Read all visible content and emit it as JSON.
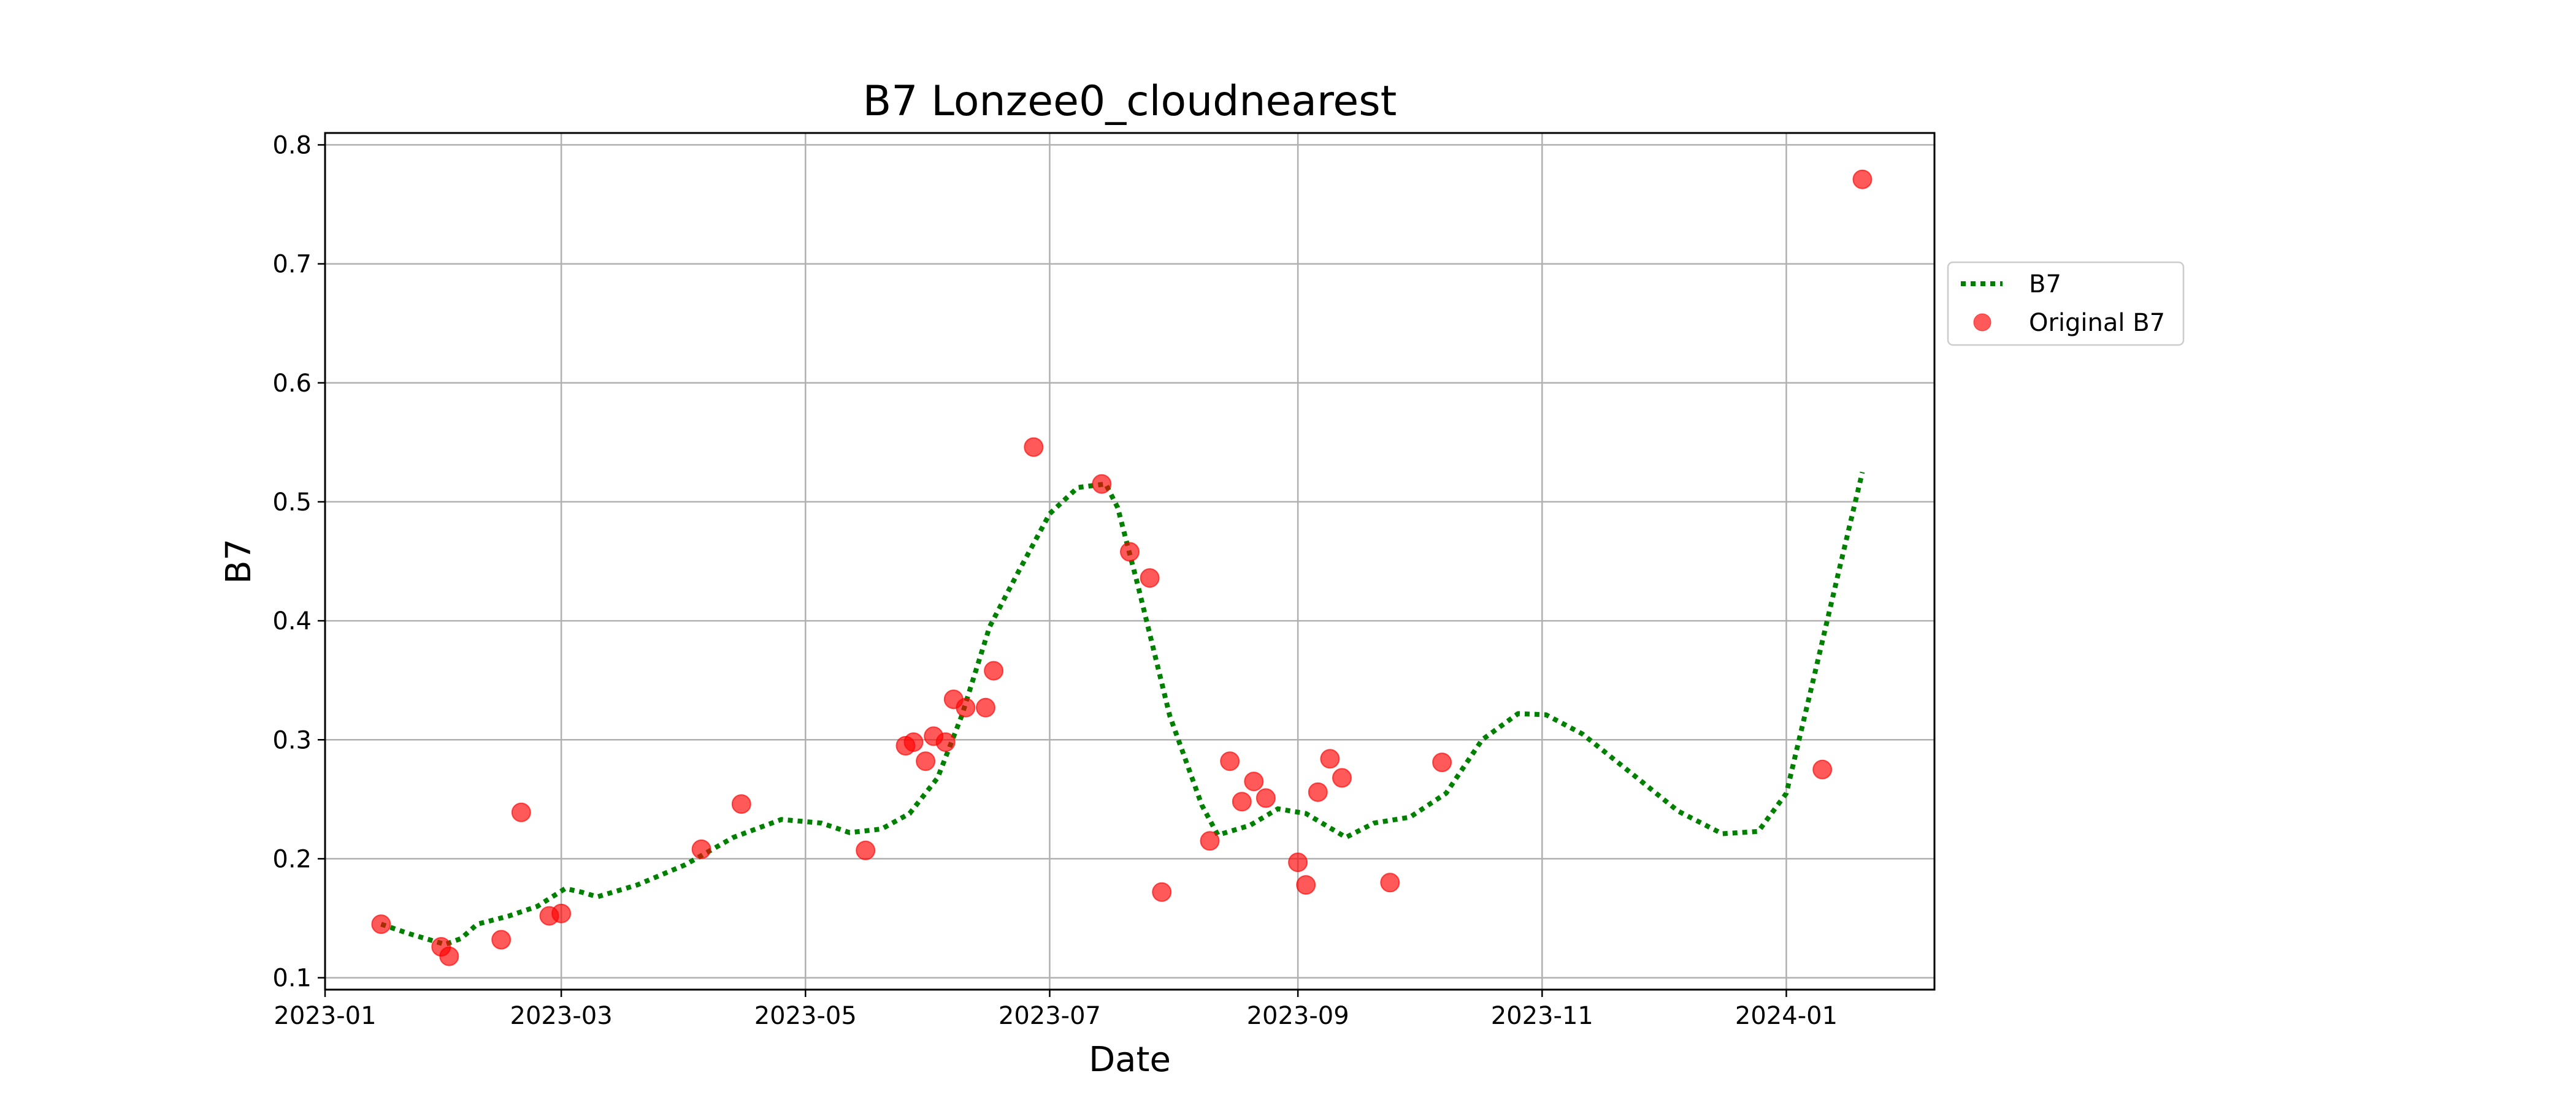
{
  "chart_data": {
    "type": "line",
    "title": "B7 Lonzee0_cloudnearest",
    "xlabel": "Date",
    "ylabel": "B7",
    "xlim": [
      "2023-01-01",
      "2024-02-07"
    ],
    "ylim": [
      0.09,
      0.81
    ],
    "x_ticks": [
      "2023-01-01",
      "2023-03-01",
      "2023-05-01",
      "2023-07-01",
      "2023-09-01",
      "2023-11-01",
      "2024-01-01"
    ],
    "x_tick_labels": [
      "2023-01",
      "2023-03",
      "2023-05",
      "2023-07",
      "2023-09",
      "2023-11",
      "2024-01"
    ],
    "y_ticks": [
      0.1,
      0.2,
      0.3,
      0.4,
      0.5,
      0.6,
      0.7,
      0.8
    ],
    "y_tick_labels": [
      "0.1",
      "0.2",
      "0.3",
      "0.4",
      "0.5",
      "0.6",
      "0.7",
      "0.8"
    ],
    "grid": true,
    "legend_position": "outside-right-top",
    "series": [
      {
        "name": "B7",
        "style": "dotted-line",
        "color": "#008000",
        "points": [
          [
            "2023-01-15",
            0.145
          ],
          [
            "2023-01-22",
            0.137
          ],
          [
            "2023-01-31",
            0.128
          ],
          [
            "2023-02-04",
            0.133
          ],
          [
            "2023-02-08",
            0.145
          ],
          [
            "2023-02-16",
            0.152
          ],
          [
            "2023-02-23",
            0.16
          ],
          [
            "2023-03-02",
            0.175
          ],
          [
            "2023-03-06",
            0.172
          ],
          [
            "2023-03-10",
            0.168
          ],
          [
            "2023-03-20",
            0.178
          ],
          [
            "2023-04-01",
            0.195
          ],
          [
            "2023-04-13",
            0.218
          ],
          [
            "2023-04-25",
            0.233
          ],
          [
            "2023-05-05",
            0.23
          ],
          [
            "2023-05-12",
            0.222
          ],
          [
            "2023-05-20",
            0.225
          ],
          [
            "2023-05-27",
            0.238
          ],
          [
            "2023-06-03",
            0.268
          ],
          [
            "2023-06-09",
            0.32
          ],
          [
            "2023-06-16",
            0.395
          ],
          [
            "2023-06-23",
            0.44
          ],
          [
            "2023-07-01",
            0.49
          ],
          [
            "2023-07-08",
            0.512
          ],
          [
            "2023-07-15",
            0.515
          ],
          [
            "2023-07-18",
            0.495
          ],
          [
            "2023-07-23",
            0.43
          ],
          [
            "2023-07-31",
            0.32
          ],
          [
            "2023-08-08",
            0.245
          ],
          [
            "2023-08-12",
            0.22
          ],
          [
            "2023-08-20",
            0.228
          ],
          [
            "2023-08-27",
            0.242
          ],
          [
            "2023-09-03",
            0.238
          ],
          [
            "2023-09-13",
            0.218
          ],
          [
            "2023-09-20",
            0.23
          ],
          [
            "2023-09-29",
            0.235
          ],
          [
            "2023-10-08",
            0.255
          ],
          [
            "2023-10-17",
            0.3
          ],
          [
            "2023-10-26",
            0.322
          ],
          [
            "2023-11-02",
            0.321
          ],
          [
            "2023-11-11",
            0.305
          ],
          [
            "2023-11-24",
            0.27
          ],
          [
            "2023-12-05",
            0.24
          ],
          [
            "2023-12-16",
            0.221
          ],
          [
            "2023-12-25",
            0.223
          ],
          [
            "2024-01-01",
            0.255
          ],
          [
            "2024-01-07",
            0.34
          ],
          [
            "2024-01-14",
            0.44
          ],
          [
            "2024-01-20",
            0.525
          ]
        ]
      },
      {
        "name": "Original B7",
        "style": "scatter",
        "color": "#ff0000",
        "points": [
          [
            "2023-01-15",
            0.145
          ],
          [
            "2023-01-30",
            0.126
          ],
          [
            "2023-02-01",
            0.118
          ],
          [
            "2023-02-14",
            0.132
          ],
          [
            "2023-02-19",
            0.239
          ],
          [
            "2023-02-26",
            0.152
          ],
          [
            "2023-03-01",
            0.154
          ],
          [
            "2023-04-05",
            0.208
          ],
          [
            "2023-04-15",
            0.246
          ],
          [
            "2023-05-16",
            0.207
          ],
          [
            "2023-05-26",
            0.295
          ],
          [
            "2023-05-28",
            0.298
          ],
          [
            "2023-05-31",
            0.282
          ],
          [
            "2023-06-02",
            0.303
          ],
          [
            "2023-06-05",
            0.298
          ],
          [
            "2023-06-07",
            0.334
          ],
          [
            "2023-06-10",
            0.327
          ],
          [
            "2023-06-15",
            0.327
          ],
          [
            "2023-06-17",
            0.358
          ],
          [
            "2023-06-27",
            0.546
          ],
          [
            "2023-07-14",
            0.515
          ],
          [
            "2023-07-21",
            0.458
          ],
          [
            "2023-07-26",
            0.436
          ],
          [
            "2023-07-29",
            0.172
          ],
          [
            "2023-08-10",
            0.215
          ],
          [
            "2023-08-15",
            0.282
          ],
          [
            "2023-08-18",
            0.248
          ],
          [
            "2023-08-21",
            0.265
          ],
          [
            "2023-08-24",
            0.251
          ],
          [
            "2023-09-01",
            0.197
          ],
          [
            "2023-09-03",
            0.178
          ],
          [
            "2023-09-06",
            0.256
          ],
          [
            "2023-09-09",
            0.284
          ],
          [
            "2023-09-12",
            0.268
          ],
          [
            "2023-09-24",
            0.18
          ],
          [
            "2023-10-07",
            0.281
          ],
          [
            "2024-01-10",
            0.275
          ],
          [
            "2024-01-20",
            0.771
          ]
        ]
      }
    ]
  }
}
